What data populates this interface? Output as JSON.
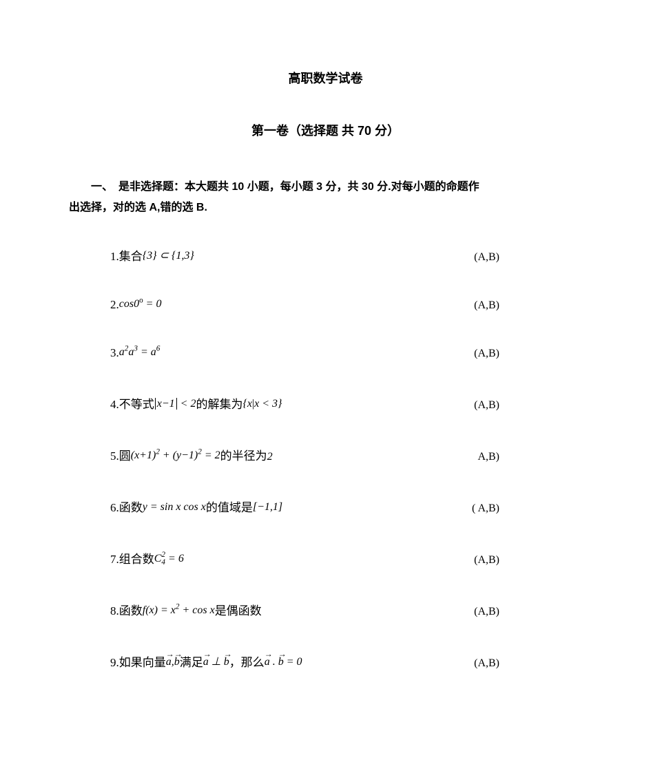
{
  "title": "高职数学试卷",
  "subtitle": "第一卷（选择题   共 70 分）",
  "section_header_line1": "一、　是非选择题：本大题共 10 小题，每小题 3 分，共 30 分.对每小题的命题作",
  "section_header_line2": "出选择，对的选 A,错的选 B.",
  "questions": {
    "q1": {
      "num": "1.",
      "pre": "集合",
      "answer": "(A,B)"
    },
    "q2": {
      "num": "2.",
      "answer": "(A,B)"
    },
    "q3": {
      "num": "3.",
      "answer": "(A,B)"
    },
    "q4": {
      "num": "4.",
      "pre": "不等式",
      "mid": "的解集为",
      "answer": "(A,B)"
    },
    "q5": {
      "num": "5.",
      "pre": "圆",
      "mid": "的半径为",
      "post": "2",
      "answer": "A,B)"
    },
    "q6": {
      "num": "6.",
      "pre": "函数",
      "mid": "的值域是",
      "answer": "( A,B)"
    },
    "q7": {
      "num": "7. ",
      "pre": "组合数",
      "answer": "(A,B)"
    },
    "q8": {
      "num": "8. ",
      "pre": "函数",
      "mid": "是偶函数",
      "answer": "(A,B)"
    },
    "q9": {
      "num": "9. ",
      "pre": "如果向量",
      "mid1": "满足",
      "mid2": "，那么",
      "answer": "(A,B)"
    }
  }
}
